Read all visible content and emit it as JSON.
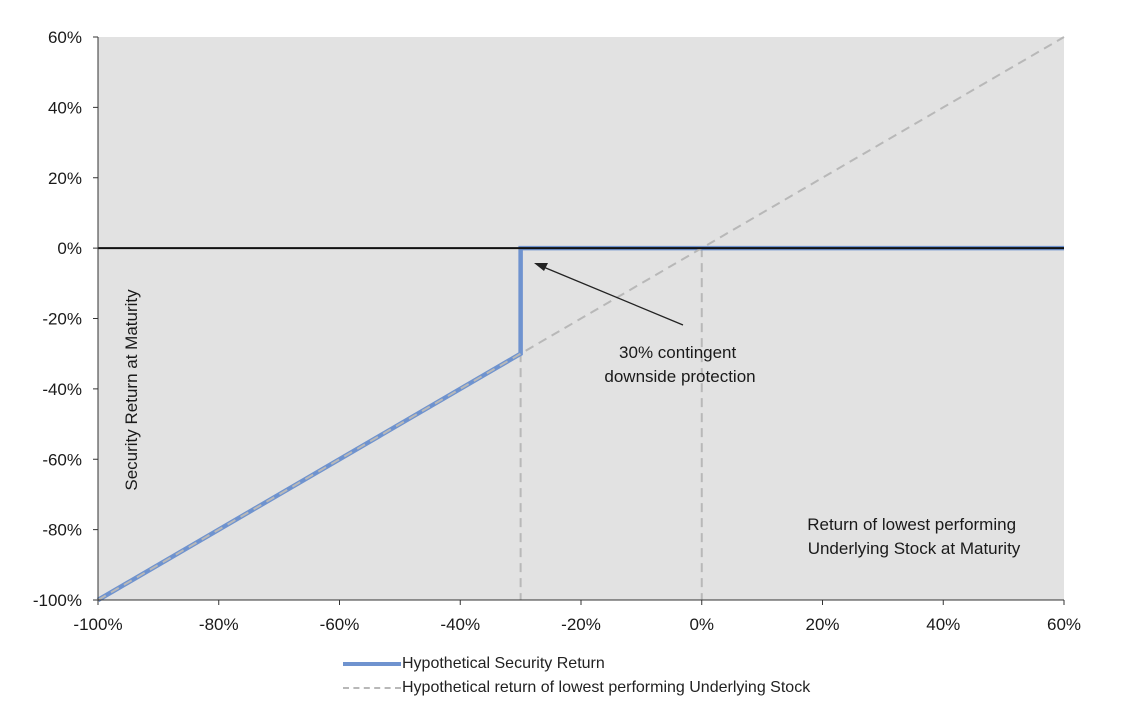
{
  "chart_data": {
    "type": "line",
    "xlim": [
      -100,
      60
    ],
    "ylim": [
      -100,
      60
    ],
    "x_ticks": [
      "-100%",
      "-80%",
      "-60%",
      "-40%",
      "-20%",
      "0%",
      "20%",
      "40%",
      "60%"
    ],
    "y_ticks": [
      "60%",
      "40%",
      "20%",
      "0%",
      "-20%",
      "-40%",
      "-60%",
      "-80%",
      "-100%"
    ],
    "ylabel": "Security Return at Maturity",
    "xlabel_lines": [
      "Return of lowest performing",
      "Underlying Stock at Maturity"
    ],
    "annotation_lines": [
      "30% contingent",
      "downside protection"
    ],
    "series": [
      {
        "name": "Hypothetical Security Return",
        "color": "#6f93cf",
        "style": "solid",
        "points": [
          [
            -100,
            -100
          ],
          [
            -30,
            -30
          ],
          [
            -30,
            0
          ],
          [
            60,
            0
          ]
        ]
      },
      {
        "name": "Hypothetical return of lowest performing Underlying Stock",
        "color": "#b8b8b8",
        "style": "dashed",
        "points": [
          [
            -100,
            -100
          ],
          [
            60,
            60
          ]
        ]
      }
    ],
    "reference_lines_x": [
      -30,
      0
    ],
    "grid": false,
    "legend_position": "bottom"
  }
}
